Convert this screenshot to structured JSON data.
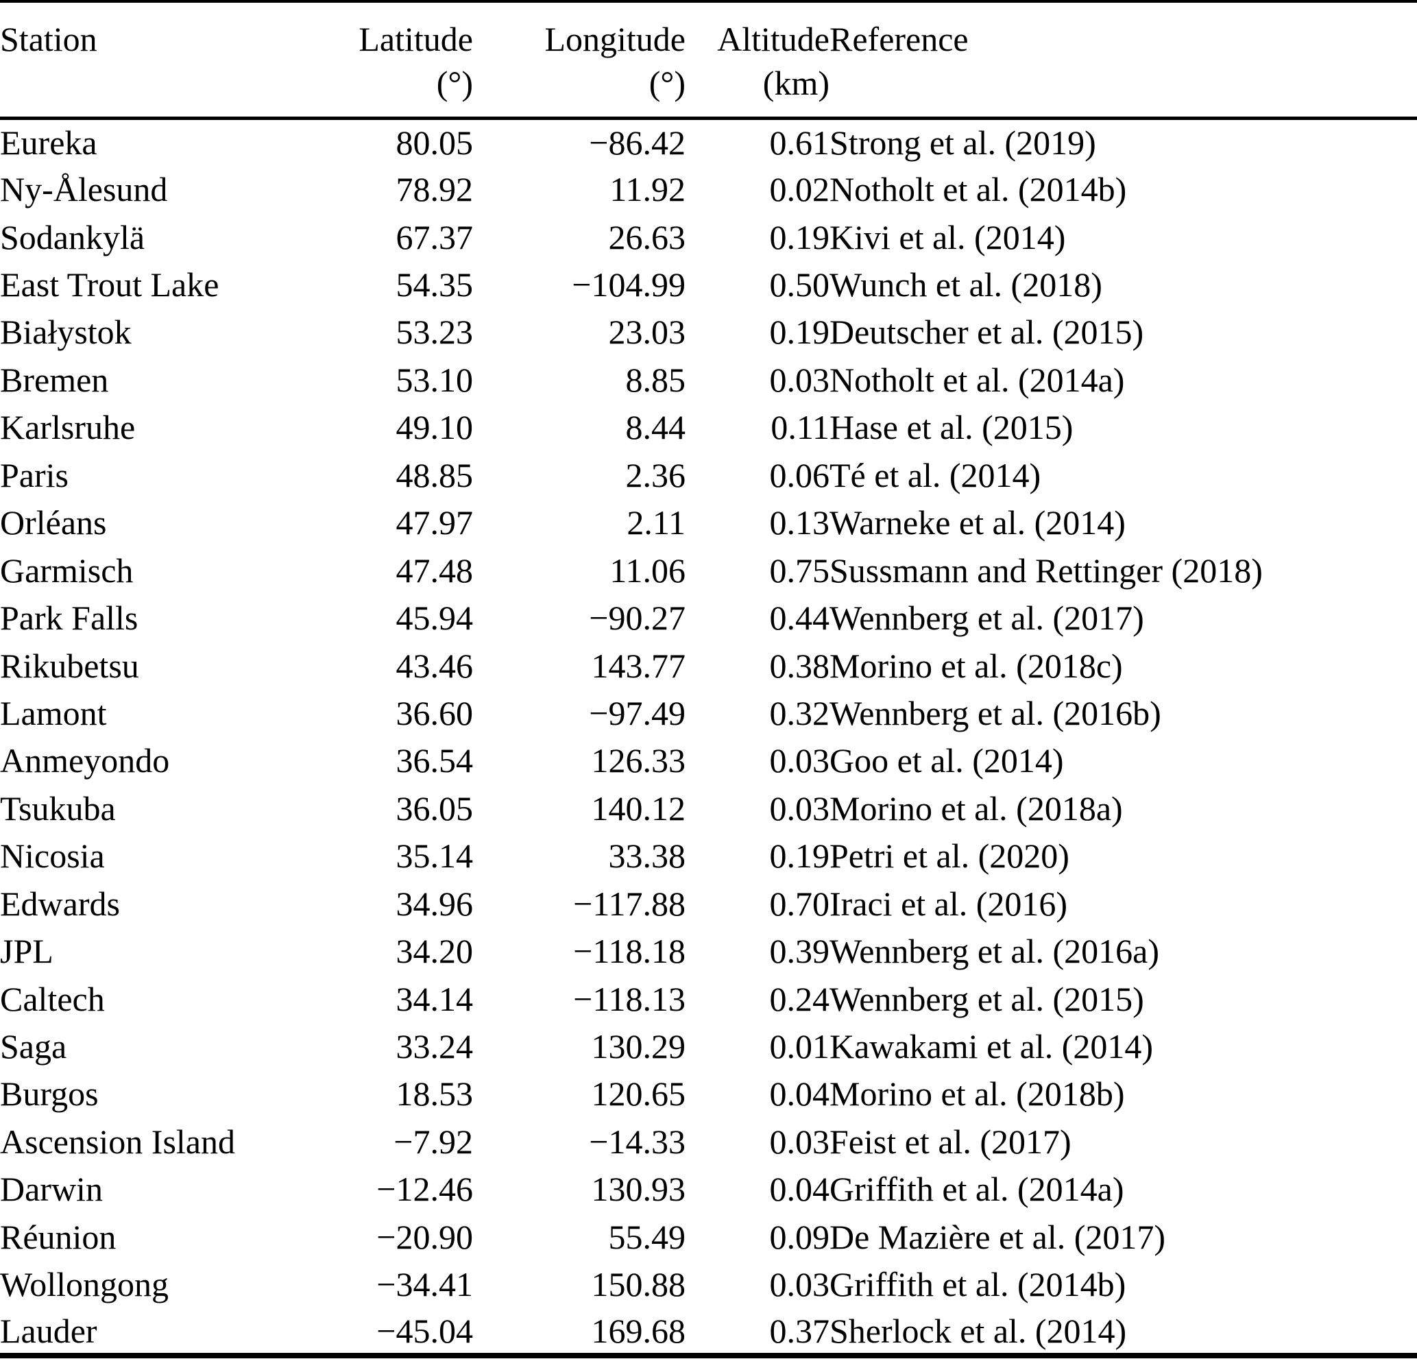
{
  "colors": {
    "background": "#ffffff",
    "text": "#000000",
    "rule": "#000000"
  },
  "table": {
    "columns": [
      {
        "label": "Station",
        "unit": ""
      },
      {
        "label": "Latitude",
        "unit": "(°)"
      },
      {
        "label": "Longitude",
        "unit": "(°)"
      },
      {
        "label": "Altitude",
        "unit": "(km)"
      },
      {
        "label": "Reference",
        "unit": ""
      }
    ],
    "rows": [
      [
        "Eureka",
        "80.05",
        "−86.42",
        "0.61",
        "Strong et al. (2019)"
      ],
      [
        "Ny-Ålesund",
        "78.92",
        "11.92",
        "0.02",
        "Notholt et al. (2014b)"
      ],
      [
        "Sodankylä",
        "67.37",
        "26.63",
        "0.19",
        "Kivi et al. (2014)"
      ],
      [
        "East Trout Lake",
        "54.35",
        "−104.99",
        "0.50",
        "Wunch et al. (2018)"
      ],
      [
        "Białystok",
        "53.23",
        "23.03",
        "0.19",
        "Deutscher et al. (2015)"
      ],
      [
        "Bremen",
        "53.10",
        "8.85",
        "0.03",
        "Notholt et al. (2014a)"
      ],
      [
        "Karlsruhe",
        "49.10",
        "8.44",
        "0.11",
        "Hase et al. (2015)"
      ],
      [
        "Paris",
        "48.85",
        "2.36",
        "0.06",
        "Té et al. (2014)"
      ],
      [
        "Orléans",
        "47.97",
        "2.11",
        "0.13",
        "Warneke et al. (2014)"
      ],
      [
        "Garmisch",
        "47.48",
        "11.06",
        "0.75",
        "Sussmann and Rettinger (2018)"
      ],
      [
        "Park Falls",
        "45.94",
        "−90.27",
        "0.44",
        "Wennberg et al. (2017)"
      ],
      [
        "Rikubetsu",
        "43.46",
        "143.77",
        "0.38",
        "Morino et al. (2018c)"
      ],
      [
        "Lamont",
        "36.60",
        "−97.49",
        "0.32",
        "Wennberg et al. (2016b)"
      ],
      [
        "Anmeyondo",
        "36.54",
        "126.33",
        "0.03",
        "Goo et al. (2014)"
      ],
      [
        "Tsukuba",
        "36.05",
        "140.12",
        "0.03",
        "Morino et al. (2018a)"
      ],
      [
        "Nicosia",
        "35.14",
        "33.38",
        "0.19",
        "Petri et al. (2020)"
      ],
      [
        "Edwards",
        "34.96",
        "−117.88",
        "0.70",
        "Iraci et al. (2016)"
      ],
      [
        "JPL",
        "34.20",
        "−118.18",
        "0.39",
        "Wennberg et al. (2016a)"
      ],
      [
        "Caltech",
        "34.14",
        "−118.13",
        "0.24",
        "Wennberg et al. (2015)"
      ],
      [
        "Saga",
        "33.24",
        "130.29",
        "0.01",
        "Kawakami et al. (2014)"
      ],
      [
        "Burgos",
        "18.53",
        "120.65",
        "0.04",
        "Morino et al. (2018b)"
      ],
      [
        "Ascension Island",
        "−7.92",
        "−14.33",
        "0.03",
        "Feist et al. (2017)"
      ],
      [
        "Darwin",
        "−12.46",
        "130.93",
        "0.04",
        "Griffith et al. (2014a)"
      ],
      [
        "Réunion",
        "−20.90",
        "55.49",
        "0.09",
        "De Mazière et al. (2017)"
      ],
      [
        "Wollongong",
        "−34.41",
        "150.88",
        "0.03",
        "Griffith et al. (2014b)"
      ],
      [
        "Lauder",
        "−45.04",
        "169.68",
        "0.37",
        "Sherlock et al. (2014)"
      ]
    ]
  }
}
